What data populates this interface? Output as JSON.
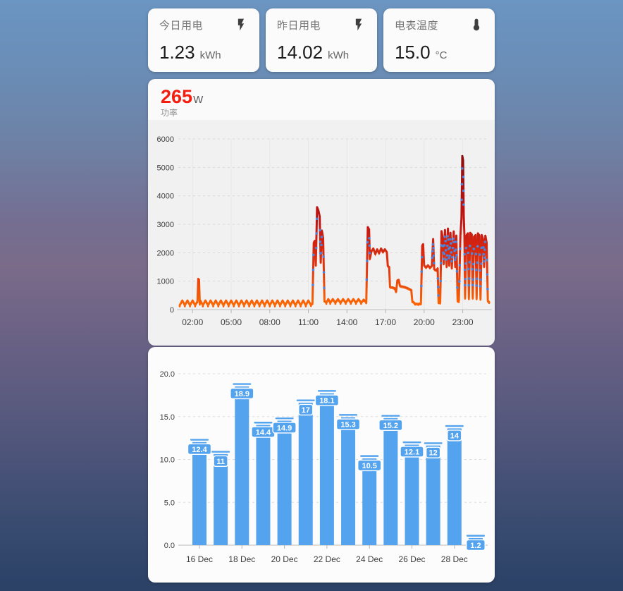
{
  "stat_cards": [
    {
      "label": "今日用电",
      "value": "1.23",
      "unit": "kWh",
      "icon": "flash-icon"
    },
    {
      "label": "昨日用电",
      "value": "14.02",
      "unit": "kWh",
      "icon": "flash-icon"
    },
    {
      "label": "电表温度",
      "value": "15.0",
      "unit": "°C",
      "icon": "thermometer-icon"
    }
  ],
  "power_card": {
    "current_value": "265",
    "unit": "W",
    "subtitle": "功率"
  },
  "colors": {
    "accent_red": "#f31d10",
    "bar_blue": "#53a3ee",
    "line_top": "#7a0b0b",
    "line_mid": "#c51511",
    "line_low": "#ff7000",
    "line_blue_dot": "#4f82d8",
    "grid": "#d9d9d9",
    "axis": "#c9c9c9",
    "tick_text": "#3d3d3d"
  },
  "chart_data": [
    {
      "type": "line",
      "title": "功率",
      "unit": "W",
      "current": 265,
      "ylim": [
        0,
        6000
      ],
      "yticks": [
        0,
        1000,
        2000,
        3000,
        4000,
        5000,
        6000
      ],
      "xtick_hours": [
        2,
        5,
        8,
        11,
        14,
        17,
        20,
        23
      ],
      "xtick_labels": [
        "02:00",
        "05:00",
        "08:00",
        "11:00",
        "14:00",
        "17:00",
        "20:00",
        "23:00"
      ],
      "points": [
        [
          1.0,
          150
        ],
        [
          1.2,
          320
        ],
        [
          1.4,
          150
        ],
        [
          1.6,
          320
        ],
        [
          1.8,
          150
        ],
        [
          2.0,
          320
        ],
        [
          2.2,
          150
        ],
        [
          2.38,
          290
        ],
        [
          2.44,
          1080
        ],
        [
          2.5,
          1050
        ],
        [
          2.56,
          210
        ],
        [
          2.6,
          320
        ],
        [
          2.8,
          150
        ],
        [
          3.0,
          320
        ],
        [
          3.2,
          150
        ],
        [
          3.4,
          320
        ],
        [
          3.6,
          150
        ],
        [
          3.8,
          320
        ],
        [
          4.0,
          150
        ],
        [
          4.2,
          320
        ],
        [
          4.4,
          150
        ],
        [
          4.6,
          320
        ],
        [
          4.8,
          150
        ],
        [
          5.0,
          320
        ],
        [
          5.2,
          150
        ],
        [
          5.4,
          320
        ],
        [
          5.6,
          150
        ],
        [
          5.8,
          320
        ],
        [
          6.0,
          150
        ],
        [
          6.2,
          320
        ],
        [
          6.4,
          150
        ],
        [
          6.6,
          320
        ],
        [
          6.8,
          150
        ],
        [
          7.0,
          320
        ],
        [
          7.2,
          150
        ],
        [
          7.4,
          320
        ],
        [
          7.6,
          150
        ],
        [
          7.8,
          320
        ],
        [
          8.0,
          150
        ],
        [
          8.2,
          320
        ],
        [
          8.4,
          150
        ],
        [
          8.6,
          320
        ],
        [
          8.8,
          150
        ],
        [
          9.0,
          320
        ],
        [
          9.2,
          150
        ],
        [
          9.4,
          320
        ],
        [
          9.6,
          150
        ],
        [
          9.8,
          320
        ],
        [
          10.0,
          150
        ],
        [
          10.2,
          320
        ],
        [
          10.4,
          150
        ],
        [
          10.6,
          320
        ],
        [
          10.8,
          150
        ],
        [
          11.0,
          320
        ],
        [
          11.2,
          160
        ],
        [
          11.32,
          230
        ],
        [
          11.42,
          2350
        ],
        [
          11.5,
          2420
        ],
        [
          11.58,
          1550
        ],
        [
          11.68,
          3600
        ],
        [
          11.78,
          3480
        ],
        [
          11.88,
          3280
        ],
        [
          11.96,
          1650
        ],
        [
          12.05,
          2780
        ],
        [
          12.15,
          2520
        ],
        [
          12.25,
          320
        ],
        [
          12.4,
          240
        ],
        [
          12.55,
          370
        ],
        [
          12.7,
          240
        ],
        [
          12.9,
          370
        ],
        [
          13.1,
          240
        ],
        [
          13.3,
          370
        ],
        [
          13.5,
          240
        ],
        [
          13.7,
          370
        ],
        [
          13.9,
          240
        ],
        [
          14.1,
          370
        ],
        [
          14.3,
          240
        ],
        [
          14.5,
          370
        ],
        [
          14.7,
          240
        ],
        [
          14.9,
          370
        ],
        [
          15.1,
          240
        ],
        [
          15.3,
          350
        ],
        [
          15.5,
          260
        ],
        [
          15.62,
          2900
        ],
        [
          15.72,
          2820
        ],
        [
          15.78,
          1780
        ],
        [
          15.9,
          2050
        ],
        [
          16.05,
          2150
        ],
        [
          16.2,
          1950
        ],
        [
          16.35,
          2120
        ],
        [
          16.5,
          1980
        ],
        [
          16.65,
          2150
        ],
        [
          16.8,
          2020
        ],
        [
          16.95,
          2120
        ],
        [
          17.1,
          2020
        ],
        [
          17.18,
          1530
        ],
        [
          17.28,
          1500
        ],
        [
          17.35,
          790
        ],
        [
          17.55,
          780
        ],
        [
          17.72,
          750
        ],
        [
          17.82,
          620
        ],
        [
          17.92,
          1030
        ],
        [
          18.02,
          1050
        ],
        [
          18.12,
          830
        ],
        [
          18.45,
          800
        ],
        [
          18.75,
          750
        ],
        [
          19.0,
          690
        ],
        [
          19.08,
          300
        ],
        [
          19.3,
          210
        ],
        [
          19.55,
          200
        ],
        [
          19.75,
          220
        ],
        [
          19.85,
          2250
        ],
        [
          19.92,
          2300
        ],
        [
          20.0,
          1550
        ],
        [
          20.15,
          1480
        ],
        [
          20.3,
          1560
        ],
        [
          20.45,
          1470
        ],
        [
          20.6,
          1540
        ],
        [
          20.7,
          2480
        ],
        [
          20.78,
          1420
        ],
        [
          20.95,
          1380
        ],
        [
          21.05,
          1450
        ],
        [
          21.12,
          260
        ],
        [
          21.25,
          250
        ],
        [
          21.35,
          2760
        ],
        [
          21.45,
          2500
        ],
        [
          21.52,
          1600
        ],
        [
          21.62,
          2800
        ],
        [
          21.75,
          1500
        ],
        [
          21.85,
          2850
        ],
        [
          21.95,
          1550
        ],
        [
          22.05,
          2700
        ],
        [
          22.15,
          1450
        ],
        [
          22.3,
          2750
        ],
        [
          22.42,
          1500
        ],
        [
          22.5,
          2600
        ],
        [
          22.6,
          320
        ],
        [
          22.7,
          300
        ],
        [
          22.82,
          2600
        ],
        [
          22.9,
          3200
        ],
        [
          22.97,
          5400
        ],
        [
          23.03,
          5250
        ],
        [
          23.08,
          3300
        ],
        [
          23.13,
          2600
        ],
        [
          23.18,
          420
        ],
        [
          23.28,
          2600
        ],
        [
          23.4,
          2680
        ],
        [
          23.48,
          400
        ],
        [
          23.58,
          2700
        ],
        [
          23.7,
          2640
        ],
        [
          23.78,
          420
        ],
        [
          23.88,
          2560
        ],
        [
          24.0,
          2620
        ],
        [
          24.08,
          400
        ],
        [
          24.18,
          2680
        ],
        [
          24.3,
          2600
        ],
        [
          24.38,
          380
        ],
        [
          24.48,
          2620
        ],
        [
          24.58,
          2480
        ],
        [
          24.66,
          1500
        ],
        [
          24.76,
          2600
        ],
        [
          24.86,
          2350
        ],
        [
          24.95,
          320
        ],
        [
          25.05,
          265
        ]
      ]
    },
    {
      "type": "bar",
      "unit": "kWh",
      "ylim": [
        0,
        20
      ],
      "ytick_labels": [
        "0.0",
        "5.0",
        "10.0",
        "15.0",
        "20.0"
      ],
      "ytick_values": [
        0,
        5,
        10,
        15,
        20
      ],
      "values": [
        12.4,
        11,
        18.9,
        14.4,
        14.9,
        17,
        18.1,
        15.3,
        10.5,
        15.2,
        12.1,
        12,
        14,
        1.2
      ],
      "bar_labels": [
        "12.4",
        "11",
        "18.9",
        "14.4",
        "14.9",
        "17",
        "18.1",
        "15.3",
        "10.5",
        "15.2",
        "12.1",
        "12",
        "14",
        "1.2"
      ],
      "x_labels": [
        "16 Dec",
        "18 Dec",
        "20 Dec",
        "22 Dec",
        "24 Dec",
        "26 Dec",
        "28 Dec"
      ],
      "x_label_every": 2
    }
  ]
}
